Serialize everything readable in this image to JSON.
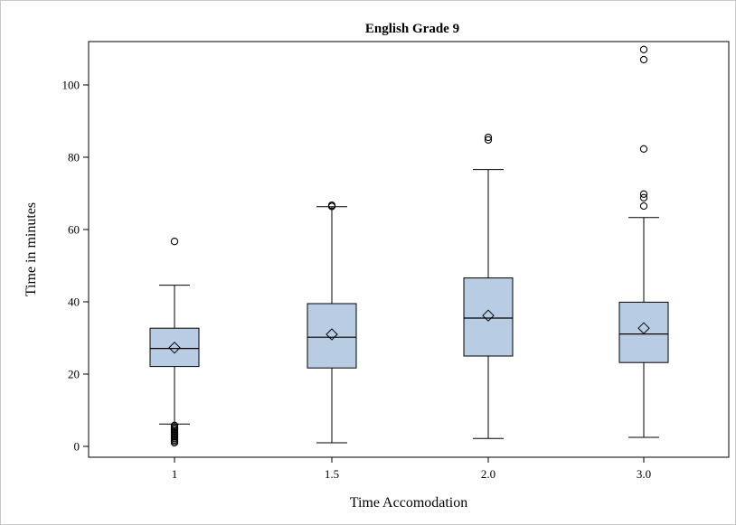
{
  "chart_data": {
    "type": "box",
    "title": "English Grade 9",
    "xlabel": "Time Accomodation",
    "ylabel": "Time in minutes",
    "ylim": [
      -3,
      112
    ],
    "yticks": [
      0,
      20,
      40,
      60,
      80,
      100
    ],
    "categories": [
      "1",
      "1.5",
      "2.0",
      "3.0"
    ],
    "box_color": "#b8cce4",
    "boxes": [
      {
        "category": "1",
        "whisker_low": 6.2,
        "q1": 22.1,
        "median": 27.1,
        "q3": 32.7,
        "whisker_high": 44.6,
        "mean": 27.3,
        "outliers": [
          56.7,
          5.8,
          5.4,
          5.0,
          4.6,
          4.2,
          3.8,
          3.4,
          3.0,
          2.6,
          2.2,
          1.8,
          1.4,
          1.0
        ]
      },
      {
        "category": "1.5",
        "whisker_low": 1.0,
        "q1": 21.7,
        "median": 30.2,
        "q3": 39.5,
        "whisker_high": 66.3,
        "mean": 31.0,
        "outliers": [
          66.4,
          66.7
        ]
      },
      {
        "category": "2.0",
        "whisker_low": 2.2,
        "q1": 25.0,
        "median": 35.5,
        "q3": 46.6,
        "whisker_high": 76.6,
        "mean": 36.2,
        "outliers": [
          84.8,
          85.5
        ]
      },
      {
        "category": "3.0",
        "whisker_low": 2.5,
        "q1": 23.2,
        "median": 31.1,
        "q3": 39.9,
        "whisker_high": 63.3,
        "mean": 32.7,
        "outliers": [
          66.5,
          68.8,
          69.8,
          82.3,
          107.0,
          109.8
        ]
      }
    ]
  }
}
